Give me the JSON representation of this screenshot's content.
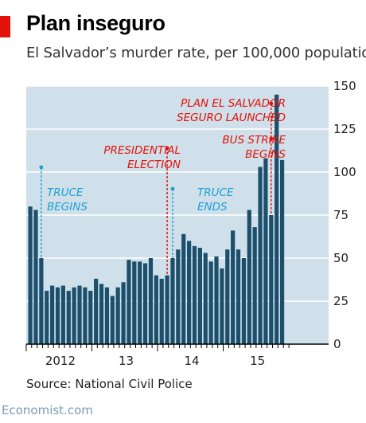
{
  "header": {
    "title": "Plan inseguro",
    "subtitle": "El Salvador’s murder rate, per 100,000 population"
  },
  "footer": {
    "source": "Source: National Civil Police",
    "wordmark": "Economist.com"
  },
  "colors": {
    "bar": "#1c4f6b",
    "background": "#cfe0ea",
    "grid": "#ffffff",
    "accent_red": "#e3120b",
    "annotation_red": "#e3120b",
    "annotation_blue": "#1c9fd6"
  },
  "chart_data": {
    "type": "bar",
    "title": "Plan inseguro",
    "subtitle": "El Salvador’s murder rate, per 100,000 population",
    "xlabel": "",
    "ylabel": "",
    "ylim": [
      0,
      150
    ],
    "y_axis_side": "right",
    "grid": true,
    "yticks": [
      "0",
      "25",
      "50",
      "75",
      "100",
      "125",
      "150"
    ],
    "xticks": [
      "2012",
      "13",
      "14",
      "15"
    ],
    "values": [
      80,
      78,
      50,
      31,
      34,
      33,
      34,
      31,
      33,
      34,
      33,
      31,
      38,
      35,
      33,
      28,
      33,
      36,
      49,
      48,
      48,
      47,
      50,
      40,
      38,
      40,
      50,
      55,
      64,
      60,
      57,
      56,
      53,
      48,
      51,
      44,
      55,
      66,
      55,
      50,
      78,
      68,
      103,
      108,
      75,
      145,
      107
    ],
    "annotations": [
      {
        "lines": [
          "TRUCE",
          "BEGINS"
        ],
        "color": "blue"
      },
      {
        "lines": [
          "PRESIDENTIAL",
          "ELECTION"
        ],
        "color": "red"
      },
      {
        "lines": [
          "TRUCE",
          "ENDS"
        ],
        "color": "blue"
      },
      {
        "lines": [
          "BUS STRIKE",
          "BEGINS"
        ],
        "color": "red"
      },
      {
        "lines": [
          "PLAN EL SALVADOR",
          "SEGURO LAUNCHED"
        ],
        "color": "red"
      }
    ]
  }
}
